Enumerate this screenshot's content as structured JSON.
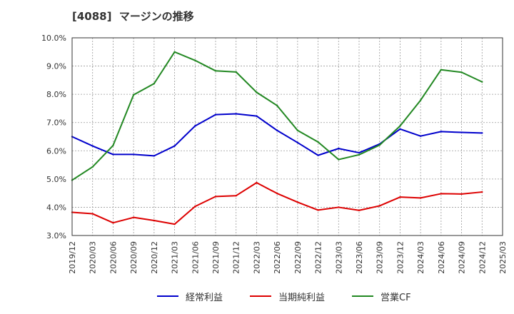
{
  "chart_data": {
    "type": "line",
    "title": "[4088]  マージンの推移",
    "xlabel": "",
    "ylabel": "",
    "ylim": [
      3.0,
      10.0
    ],
    "grid": true,
    "legend_position": "bottom",
    "y_ticks": [
      "3.0%",
      "4.0%",
      "5.0%",
      "6.0%",
      "7.0%",
      "8.0%",
      "9.0%",
      "10.0%"
    ],
    "x_ticks": [
      "2019/12",
      "2020/03",
      "2020/06",
      "2020/09",
      "2020/12",
      "2021/03",
      "2021/06",
      "2021/09",
      "2021/12",
      "2022/03",
      "2022/06",
      "2022/09",
      "2022/12",
      "2023/03",
      "2023/06",
      "2023/09",
      "2023/12",
      "2024/03",
      "2024/06",
      "2024/09",
      "2024/12",
      "2025/03"
    ],
    "categories": [
      "2019/12",
      "2020/03",
      "2020/06",
      "2020/09",
      "2020/12",
      "2021/03",
      "2021/06",
      "2021/09",
      "2021/12",
      "2022/03",
      "2022/06",
      "2022/09",
      "2022/12",
      "2023/03",
      "2023/06",
      "2023/09",
      "2023/12",
      "2024/03",
      "2024/06",
      "2024/09",
      "2024/12"
    ],
    "series": [
      {
        "name": "経常利益",
        "color": "#0000cc",
        "values": [
          6.5,
          6.17,
          5.87,
          5.87,
          5.82,
          6.17,
          6.88,
          7.28,
          7.31,
          7.23,
          6.72,
          6.29,
          5.84,
          6.08,
          5.93,
          6.24,
          6.77,
          6.52,
          6.68,
          6.65,
          6.63
        ]
      },
      {
        "name": "当期純利益",
        "color": "#dd0000",
        "values": [
          3.82,
          3.77,
          3.45,
          3.64,
          3.53,
          3.4,
          4.03,
          4.38,
          4.41,
          4.87,
          4.49,
          4.18,
          3.9,
          4.0,
          3.89,
          4.05,
          4.36,
          4.33,
          4.48,
          4.47,
          4.54
        ]
      },
      {
        "name": "営業CF",
        "color": "#228822",
        "values": [
          4.96,
          5.43,
          6.19,
          7.98,
          8.38,
          9.5,
          9.2,
          8.83,
          8.79,
          8.07,
          7.6,
          6.72,
          6.31,
          5.69,
          5.86,
          6.2,
          6.88,
          7.79,
          8.87,
          8.78,
          8.44
        ]
      }
    ]
  }
}
